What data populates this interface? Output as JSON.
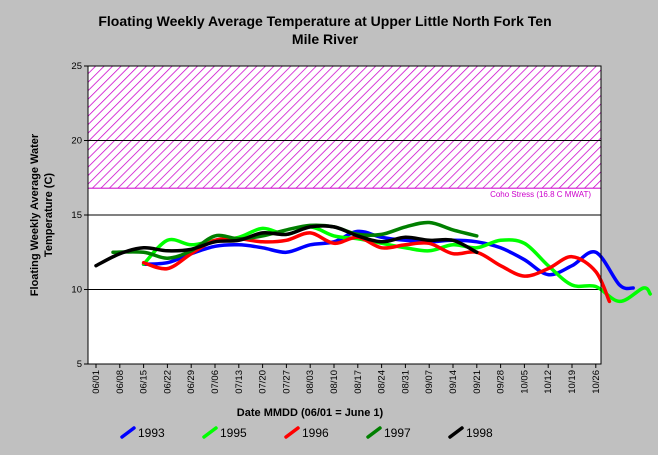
{
  "chart_data": {
    "type": "line",
    "title_line1": "Floating Weekly Average Temperature at Upper Little North Fork Ten",
    "title_line2": "Mile River",
    "xlabel": "Date MMDD (06/01 = June 1)",
    "ylabel_line1": "Floating Weekly Average Water",
    "ylabel_line2": "Temperature (C)",
    "ylim": [
      5,
      25
    ],
    "yticks": [
      "5",
      "10",
      "15",
      "20",
      "25"
    ],
    "gridlines_y": [
      10,
      15,
      20
    ],
    "x_tick_labels": [
      "06/01",
      "06/08",
      "06/15",
      "06/22",
      "06/29",
      "07/06",
      "07/13",
      "07/20",
      "07/27",
      "08/03",
      "08/10",
      "08/17",
      "08/24",
      "08/31",
      "09/07",
      "09/14",
      "09/21",
      "09/28",
      "10/05",
      "10/12",
      "10/19",
      "10/26"
    ],
    "x_day_range": [
      0,
      155
    ],
    "stress_zone": {
      "label": "Coho Stress (16.8 C MWAT)",
      "low": 16.8,
      "high": 25,
      "color": "#cc00cc"
    },
    "legend_position": "bottom",
    "series": [
      {
        "name": "1993",
        "color": "#0000ff",
        "points": [
          [
            14,
            11.7
          ],
          [
            21,
            11.8
          ],
          [
            28,
            12.4
          ],
          [
            35,
            12.9
          ],
          [
            42,
            13.0
          ],
          [
            49,
            12.8
          ],
          [
            56,
            12.5
          ],
          [
            63,
            13.0
          ],
          [
            70,
            13.2
          ],
          [
            77,
            13.9
          ],
          [
            84,
            13.5
          ],
          [
            91,
            13.3
          ],
          [
            98,
            13.2
          ],
          [
            105,
            13.3
          ],
          [
            112,
            13.2
          ],
          [
            119,
            12.8
          ],
          [
            126,
            12.0
          ],
          [
            133,
            11.0
          ],
          [
            140,
            11.6
          ],
          [
            147,
            12.5
          ],
          [
            154,
            10.3
          ],
          [
            158,
            10.1
          ]
        ]
      },
      {
        "name": "1995",
        "color": "#00ff00",
        "points": [
          [
            14,
            11.7
          ],
          [
            21,
            13.3
          ],
          [
            28,
            13.0
          ],
          [
            35,
            13.3
          ],
          [
            42,
            13.5
          ],
          [
            49,
            14.1
          ],
          [
            56,
            13.7
          ],
          [
            63,
            14.2
          ],
          [
            70,
            13.6
          ],
          [
            77,
            13.4
          ],
          [
            84,
            13.1
          ],
          [
            91,
            12.8
          ],
          [
            98,
            12.6
          ],
          [
            105,
            13.0
          ],
          [
            112,
            12.8
          ],
          [
            119,
            13.3
          ],
          [
            126,
            13.1
          ],
          [
            133,
            11.6
          ],
          [
            140,
            10.3
          ],
          [
            147,
            10.2
          ],
          [
            154,
            9.2
          ],
          [
            161,
            10.1
          ],
          [
            163,
            9.7
          ]
        ]
      },
      {
        "name": "1996",
        "color": "#ff0000",
        "points": [
          [
            14,
            11.8
          ],
          [
            21,
            11.4
          ],
          [
            28,
            12.4
          ],
          [
            35,
            13.3
          ],
          [
            42,
            13.4
          ],
          [
            49,
            13.2
          ],
          [
            56,
            13.3
          ],
          [
            63,
            13.8
          ],
          [
            70,
            13.1
          ],
          [
            77,
            13.5
          ],
          [
            84,
            12.8
          ],
          [
            91,
            13.0
          ],
          [
            98,
            13.1
          ],
          [
            105,
            12.4
          ],
          [
            112,
            12.5
          ],
          [
            119,
            11.6
          ],
          [
            126,
            10.9
          ],
          [
            133,
            11.4
          ],
          [
            140,
            12.2
          ],
          [
            147,
            11.2
          ],
          [
            151,
            9.2
          ]
        ]
      },
      {
        "name": "1997",
        "color": "#007f00",
        "points": [
          [
            5,
            12.5
          ],
          [
            14,
            12.5
          ],
          [
            21,
            12.1
          ],
          [
            28,
            12.6
          ],
          [
            35,
            13.6
          ],
          [
            42,
            13.4
          ],
          [
            49,
            13.6
          ],
          [
            56,
            14.0
          ],
          [
            63,
            14.3
          ],
          [
            70,
            14.2
          ],
          [
            77,
            13.7
          ],
          [
            84,
            13.7
          ],
          [
            91,
            14.2
          ],
          [
            98,
            14.5
          ],
          [
            105,
            14.0
          ],
          [
            112,
            13.6
          ]
        ]
      },
      {
        "name": "1998",
        "color": "#000000",
        "points": [
          [
            0,
            11.6
          ],
          [
            7,
            12.4
          ],
          [
            14,
            12.8
          ],
          [
            21,
            12.6
          ],
          [
            28,
            12.7
          ],
          [
            35,
            13.2
          ],
          [
            42,
            13.3
          ],
          [
            49,
            13.8
          ],
          [
            56,
            13.7
          ],
          [
            63,
            14.2
          ],
          [
            70,
            14.2
          ],
          [
            77,
            13.6
          ],
          [
            84,
            13.2
          ],
          [
            91,
            13.5
          ],
          [
            98,
            13.3
          ],
          [
            105,
            13.3
          ],
          [
            112,
            12.5
          ]
        ]
      }
    ]
  }
}
